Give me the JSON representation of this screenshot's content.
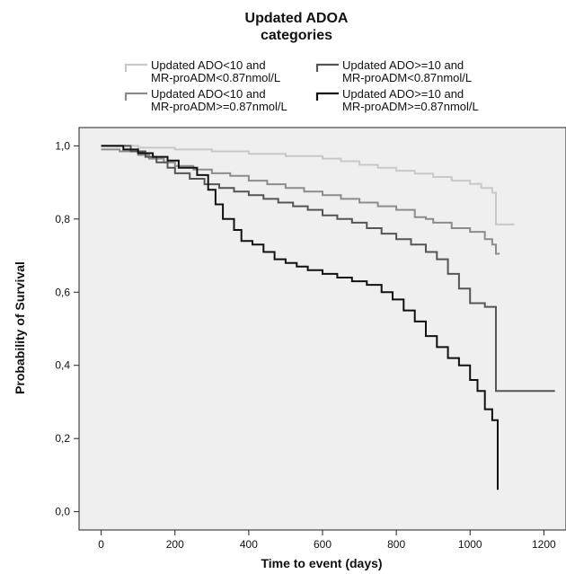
{
  "chart_data": {
    "type": "line",
    "subtype": "kaplan-meier step",
    "legend_title_line1": "Updated ADOA",
    "legend_title_line2": "categories",
    "xlabel": "Time to event (days)",
    "ylabel": "Probability of Survival",
    "xlim": [
      -60,
      1260
    ],
    "ylim": [
      -0.05,
      1.05
    ],
    "x_ticks": [
      0,
      200,
      400,
      600,
      800,
      1000,
      1200
    ],
    "x_tick_labels": [
      "0",
      "200",
      "400",
      "600",
      "800",
      "1000",
      "1200"
    ],
    "y_ticks": [
      0,
      0.2,
      0.4,
      0.6,
      0.8,
      1.0
    ],
    "y_tick_labels": [
      "0,0",
      "0,2",
      "0,4",
      "0,6",
      "0,8",
      "1,0"
    ],
    "grid": false,
    "plot_background": "#efefef",
    "legend_position": "top",
    "series": [
      {
        "name_line1": "Updated ADO<10 and",
        "name_line2": "MR-proADM<0.87nmol/L",
        "color": "#c8c8c8",
        "points": [
          [
            0,
            1.0
          ],
          [
            100,
            0.995
          ],
          [
            200,
            0.99
          ],
          [
            300,
            0.985
          ],
          [
            400,
            0.978
          ],
          [
            500,
            0.972
          ],
          [
            600,
            0.965
          ],
          [
            650,
            0.958
          ],
          [
            700,
            0.948
          ],
          [
            750,
            0.94
          ],
          [
            800,
            0.932
          ],
          [
            850,
            0.924
          ],
          [
            900,
            0.915
          ],
          [
            950,
            0.905
          ],
          [
            1000,
            0.896
          ],
          [
            1030,
            0.885
          ],
          [
            1060,
            0.872
          ],
          [
            1070,
            0.785
          ],
          [
            1120,
            0.785
          ]
        ]
      },
      {
        "name_line1": "Updated ADO<10 and",
        "name_line2": "MR-proADM>=0.87nmol/L",
        "color": "#8c8c8c",
        "points": [
          [
            0,
            0.99
          ],
          [
            50,
            0.985
          ],
          [
            100,
            0.975
          ],
          [
            130,
            0.965
          ],
          [
            170,
            0.955
          ],
          [
            200,
            0.945
          ],
          [
            250,
            0.935
          ],
          [
            300,
            0.925
          ],
          [
            350,
            0.918
          ],
          [
            400,
            0.905
          ],
          [
            450,
            0.895
          ],
          [
            500,
            0.885
          ],
          [
            550,
            0.875
          ],
          [
            600,
            0.865
          ],
          [
            650,
            0.855
          ],
          [
            700,
            0.845
          ],
          [
            750,
            0.835
          ],
          [
            800,
            0.825
          ],
          [
            850,
            0.805
          ],
          [
            880,
            0.8
          ],
          [
            900,
            0.79
          ],
          [
            950,
            0.775
          ],
          [
            1000,
            0.765
          ],
          [
            1040,
            0.745
          ],
          [
            1060,
            0.73
          ],
          [
            1070,
            0.705
          ],
          [
            1080,
            0.705
          ]
        ]
      },
      {
        "name_line1": "Updated ADO>=10 and",
        "name_line2": "MR-proADM<0.87nmol/L",
        "color": "#555555",
        "points": [
          [
            0,
            1.0
          ],
          [
            80,
            0.985
          ],
          [
            120,
            0.97
          ],
          [
            150,
            0.955
          ],
          [
            180,
            0.94
          ],
          [
            200,
            0.925
          ],
          [
            240,
            0.91
          ],
          [
            280,
            0.895
          ],
          [
            320,
            0.885
          ],
          [
            360,
            0.875
          ],
          [
            400,
            0.865
          ],
          [
            440,
            0.855
          ],
          [
            480,
            0.845
          ],
          [
            520,
            0.835
          ],
          [
            560,
            0.825
          ],
          [
            600,
            0.81
          ],
          [
            640,
            0.8
          ],
          [
            680,
            0.79
          ],
          [
            720,
            0.775
          ],
          [
            760,
            0.76
          ],
          [
            800,
            0.745
          ],
          [
            840,
            0.73
          ],
          [
            880,
            0.71
          ],
          [
            910,
            0.69
          ],
          [
            940,
            0.65
          ],
          [
            970,
            0.61
          ],
          [
            1000,
            0.57
          ],
          [
            1040,
            0.56
          ],
          [
            1070,
            0.33
          ],
          [
            1230,
            0.33
          ]
        ]
      },
      {
        "name_line1": "Updated ADO>=10 and",
        "name_line2": "MR-proADM>=0.87nmol/L",
        "color": "#111111",
        "points": [
          [
            0,
            1.0
          ],
          [
            60,
            0.99
          ],
          [
            100,
            0.98
          ],
          [
            140,
            0.97
          ],
          [
            180,
            0.96
          ],
          [
            210,
            0.94
          ],
          [
            260,
            0.92
          ],
          [
            290,
            0.88
          ],
          [
            310,
            0.84
          ],
          [
            330,
            0.8
          ],
          [
            360,
            0.77
          ],
          [
            380,
            0.74
          ],
          [
            410,
            0.73
          ],
          [
            440,
            0.71
          ],
          [
            470,
            0.69
          ],
          [
            500,
            0.68
          ],
          [
            530,
            0.67
          ],
          [
            560,
            0.66
          ],
          [
            600,
            0.65
          ],
          [
            640,
            0.64
          ],
          [
            680,
            0.63
          ],
          [
            720,
            0.62
          ],
          [
            760,
            0.6
          ],
          [
            790,
            0.58
          ],
          [
            820,
            0.55
          ],
          [
            850,
            0.52
          ],
          [
            880,
            0.48
          ],
          [
            910,
            0.45
          ],
          [
            940,
            0.42
          ],
          [
            970,
            0.4
          ],
          [
            1000,
            0.36
          ],
          [
            1020,
            0.33
          ],
          [
            1040,
            0.28
          ],
          [
            1060,
            0.25
          ],
          [
            1075,
            0.06
          ]
        ]
      }
    ]
  }
}
